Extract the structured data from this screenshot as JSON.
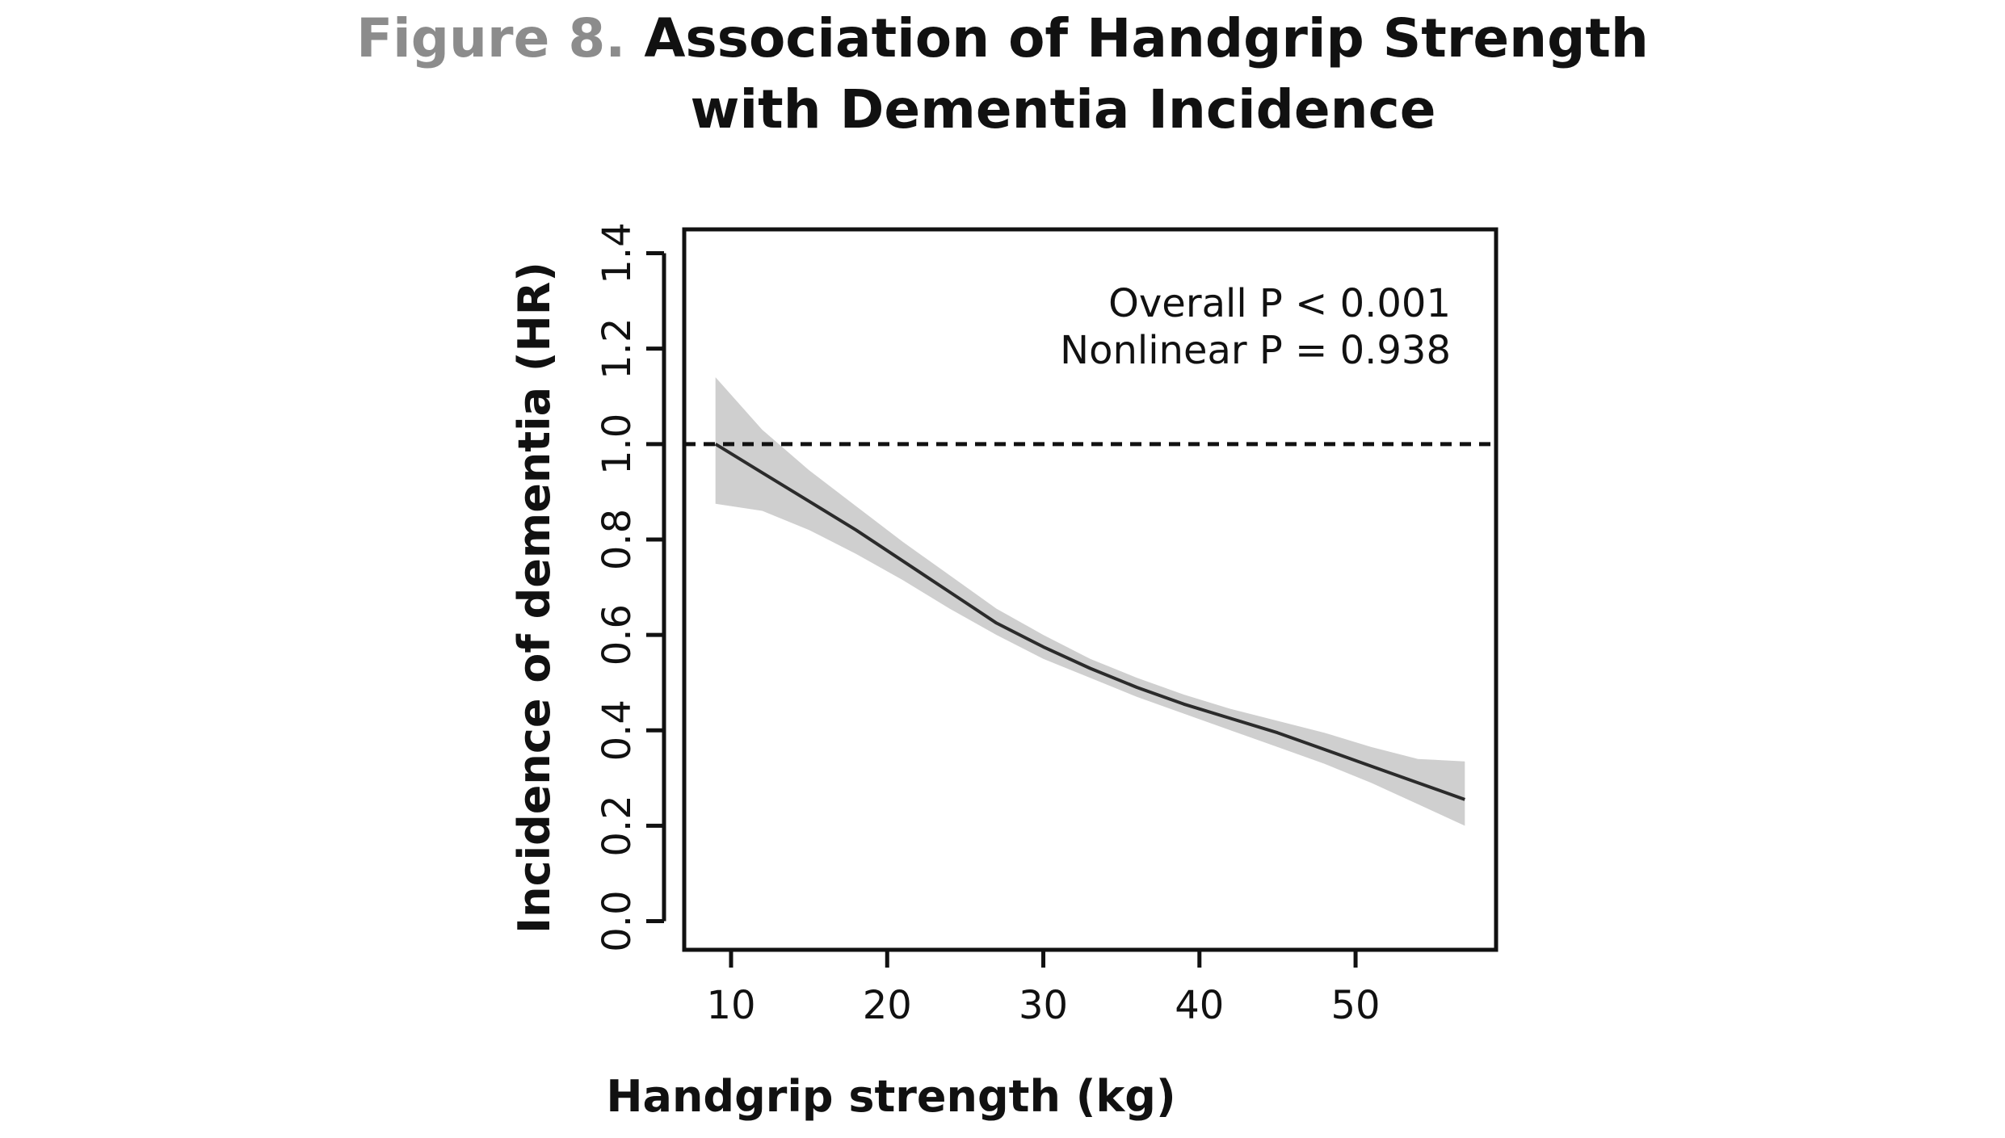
{
  "figure": {
    "label": "Figure 8.",
    "title_line1": "Association of Handgrip Strength",
    "title_line2": "with Dementia Incidence"
  },
  "chart_data": {
    "type": "line",
    "title": "Association of Handgrip Strength with Dementia Incidence",
    "xlabel": "Handgrip strength (kg)",
    "ylabel": "Incidence of dementia (HR)",
    "xlim": [
      7,
      59
    ],
    "ylim": [
      -0.06,
      1.45
    ],
    "x_ticks": [
      10,
      20,
      30,
      40,
      50
    ],
    "y_ticks": [
      "0.0",
      "0.2",
      "0.4",
      "0.6",
      "0.8",
      "1.0",
      "1.2",
      "1.4"
    ],
    "grid": false,
    "reference_line": {
      "y": 1.0,
      "style": "dashed"
    },
    "annotations": [
      "Overall P < 0.001",
      "Nonlinear P = 0.938"
    ],
    "series": [
      {
        "x": [
          9,
          12,
          15,
          18,
          21,
          24,
          27,
          30,
          33,
          36,
          39,
          42,
          45,
          48,
          51,
          54,
          57
        ],
        "y": [
          1.0,
          0.94,
          0.88,
          0.82,
          0.755,
          0.69,
          0.625,
          0.575,
          0.53,
          0.49,
          0.455,
          0.425,
          0.395,
          0.36,
          0.325,
          0.29,
          0.255
        ],
        "lower": [
          0.875,
          0.86,
          0.82,
          0.77,
          0.715,
          0.655,
          0.6,
          0.55,
          0.51,
          0.47,
          0.435,
          0.4,
          0.365,
          0.33,
          0.29,
          0.245,
          0.2
        ],
        "upper": [
          1.14,
          1.03,
          0.945,
          0.87,
          0.795,
          0.725,
          0.655,
          0.6,
          0.55,
          0.51,
          0.475,
          0.445,
          0.42,
          0.395,
          0.365,
          0.34,
          0.335
        ]
      }
    ],
    "colors": {
      "line": "#2b2b2b",
      "band": "#cfcfcf",
      "axis": "#111111",
      "label_gray": "#8c8c8c"
    }
  }
}
